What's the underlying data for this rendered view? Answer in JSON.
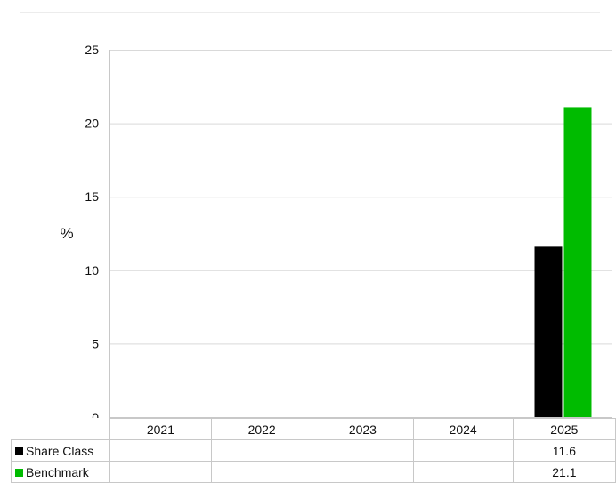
{
  "chart_data": {
    "type": "bar",
    "categories": [
      "2021",
      "2022",
      "2023",
      "2024",
      "2025"
    ],
    "series": [
      {
        "name": "Share Class",
        "color": "#000000",
        "values": [
          null,
          null,
          null,
          null,
          11.6
        ]
      },
      {
        "name": "Benchmark",
        "color": "#00bb00",
        "values": [
          null,
          null,
          null,
          null,
          21.1
        ]
      }
    ],
    "ylabel": "%",
    "ylim": [
      0,
      25
    ],
    "yticks": [
      "0",
      "5",
      "10",
      "15",
      "20",
      "25"
    ],
    "grid": true,
    "table": {
      "rows": [
        {
          "label": "Share Class",
          "color": "#000000",
          "cells": [
            "",
            "",
            "",
            "",
            "11.6"
          ]
        },
        {
          "label": "Benchmark",
          "color": "#00bb00",
          "cells": [
            "",
            "",
            "",
            "",
            "21.1"
          ]
        }
      ]
    }
  }
}
